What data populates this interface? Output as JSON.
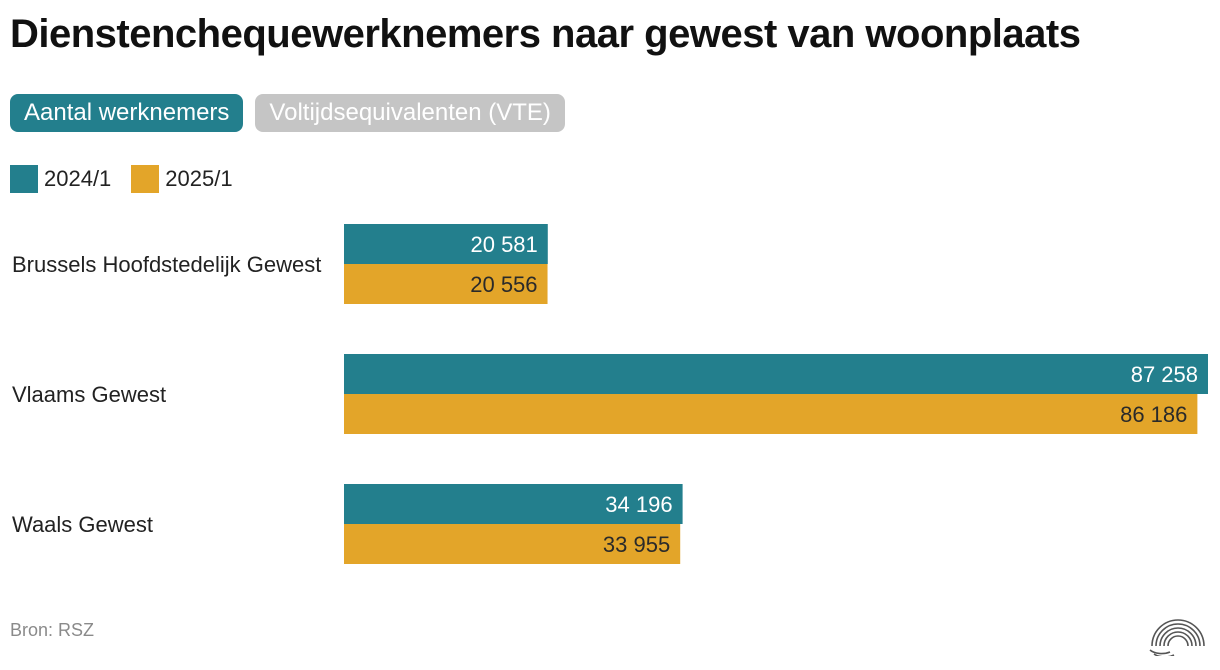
{
  "title": "Dienstenchequewerknemers naar gewest van woonplaats",
  "tabs": [
    {
      "label": "Aantal werknemers",
      "active": true
    },
    {
      "label": "Voltijdsequivalenten (VTE)",
      "active": false
    }
  ],
  "legend": [
    {
      "label": "2024/1",
      "color": "#237f8d"
    },
    {
      "label": "2025/1",
      "color": "#e3a529"
    }
  ],
  "source": "Bron: RSZ",
  "chart_data": {
    "type": "bar",
    "orientation": "horizontal",
    "categories": [
      "Brussels Hoofdstedelijk Gewest",
      "Vlaams Gewest",
      "Waals Gewest"
    ],
    "series": [
      {
        "name": "2024/1",
        "color": "#237f8d",
        "values": [
          20581,
          87258,
          34196
        ],
        "labels": [
          "20 581",
          "87 258",
          "34 196"
        ]
      },
      {
        "name": "2025/1",
        "color": "#e3a529",
        "values": [
          20556,
          86186,
          33955
        ],
        "labels": [
          "20 556",
          "86 186",
          "33 955"
        ]
      }
    ],
    "xlim": [
      0,
      87258
    ],
    "grid": false,
    "legend_position": "top-left"
  }
}
